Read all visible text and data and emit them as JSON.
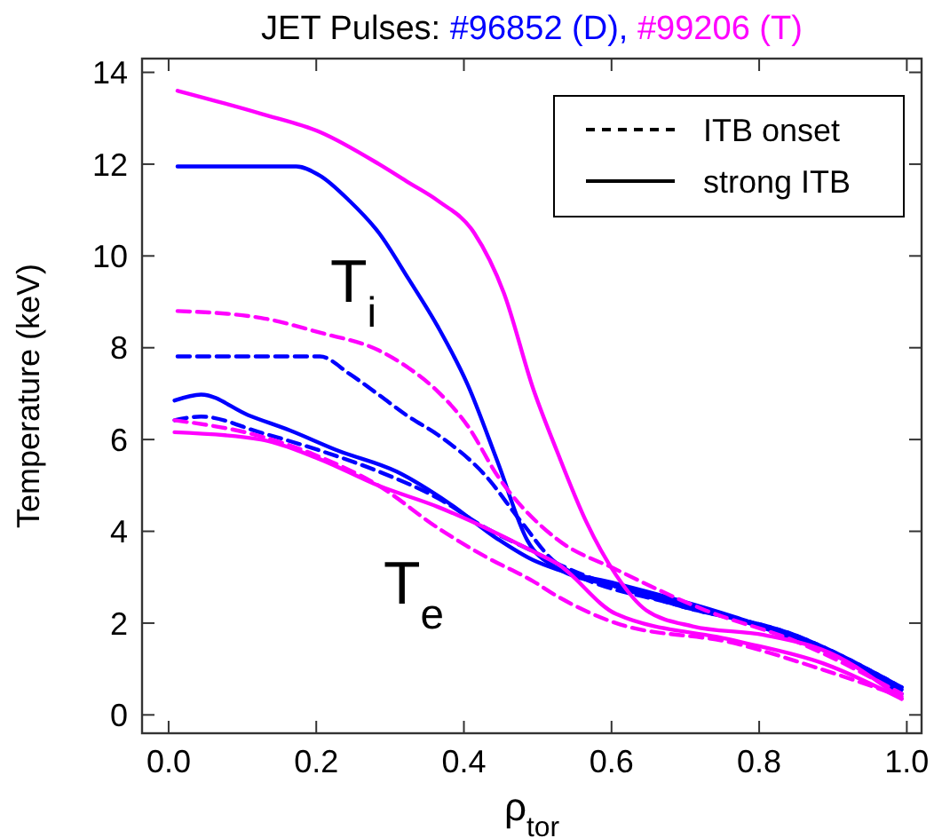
{
  "chart_data": {
    "type": "line",
    "title": "JET Pulses:",
    "xlabel": "ρ$_{tor}$",
    "ylabel": "Temperature (keV)",
    "xlim": [
      -0.036,
      1.02
    ],
    "ylim": [
      -0.4,
      14.3
    ],
    "xticks": [
      {
        "value": 0,
        "label": "0.0"
      },
      {
        "value": 0.2,
        "label": "0.2"
      },
      {
        "value": 0.4,
        "label": "0.4"
      },
      {
        "value": 0.6,
        "label": "0.6"
      },
      {
        "value": 0.8,
        "label": "0.8"
      },
      {
        "value": 1,
        "label": "1.0"
      }
    ],
    "yticks": [
      0,
      2,
      4,
      6,
      8,
      10,
      12,
      14
    ],
    "marker": "none",
    "annotations": [
      "ITB onset",
      "strong ITB",
      "T$_{i}$",
      "T$_{e}$"
    ],
    "series": [
      {
        "name": "#96852 (D),",
        "color": "#0000ff",
        "line_style": "solid",
        "x": [
          0.012,
          0.1,
          0.173,
          0.205,
          0.245,
          0.285,
          0.325,
          0.365,
          0.405,
          0.446,
          0.486,
          0.526,
          0.606,
          0.767,
          0.896,
          0.993
        ],
        "values": [
          11.95,
          11.95,
          11.95,
          11.75,
          11.2,
          10.5,
          9.5,
          8.45,
          7.2,
          5.5,
          3.8,
          3.2,
          2.8,
          2.1,
          1.35,
          0.55
        ]
      },
      {
        "color": "#0000ff",
        "line_style": "dashed",
        "x": [
          0.012,
          0.1,
          0.205,
          0.245,
          0.285,
          0.325,
          0.365,
          0.43,
          0.478,
          0.526,
          0.687,
          0.848,
          0.993
        ],
        "values": [
          7.81,
          7.81,
          7.81,
          7.43,
          6.97,
          6.5,
          6.1,
          5.2,
          4.2,
          3.3,
          2.4,
          1.74,
          0.6
        ]
      },
      {
        "color": "#0000ff",
        "line_style": "solid",
        "x": [
          0.008,
          0.044,
          0.108,
          0.164,
          0.229,
          0.309,
          0.381,
          0.446,
          0.494,
          0.526,
          0.606,
          0.767,
          0.887,
          0.993
        ],
        "values": [
          6.85,
          6.98,
          6.53,
          6.2,
          5.76,
          5.3,
          4.6,
          3.83,
          3.37,
          3.17,
          2.86,
          2.13,
          1.43,
          0.46
        ]
      },
      {
        "color": "#0000ff",
        "line_style": "dashed",
        "x": [
          0.008,
          0.044,
          0.125,
          0.205,
          0.285,
          0.365,
          0.43,
          0.494,
          0.526,
          0.687,
          0.848,
          0.993
        ],
        "values": [
          6.42,
          6.5,
          6.15,
          5.76,
          5.3,
          4.72,
          4.07,
          3.56,
          3.3,
          2.4,
          1.74,
          0.6
        ]
      },
      {
        "name": "#99206 (T)",
        "color": "#ff00ff",
        "line_style": "solid",
        "x": [
          0.012,
          0.125,
          0.205,
          0.285,
          0.325,
          0.365,
          0.414,
          0.454,
          0.494,
          0.526,
          0.566,
          0.606,
          0.647,
          0.71,
          0.807,
          0.896,
          0.993
        ],
        "values": [
          13.6,
          13.1,
          12.7,
          12.0,
          11.6,
          11.2,
          10.5,
          9.2,
          7.1,
          5.75,
          4.2,
          3.05,
          2.28,
          1.93,
          1.74,
          1.35,
          0.35
        ]
      },
      {
        "color": "#ff00ff",
        "line_style": "dashed",
        "x": [
          0.012,
          0.125,
          0.205,
          0.285,
          0.325,
          0.365,
          0.405,
          0.446,
          0.526,
          0.606,
          0.727,
          0.847,
          0.993
        ],
        "values": [
          8.8,
          8.65,
          8.33,
          7.94,
          7.56,
          7.04,
          6.3,
          5.2,
          3.83,
          3.17,
          2.28,
          1.62,
          0.46
        ]
      },
      {
        "color": "#ff00ff",
        "line_style": "solid",
        "x": [
          0.008,
          0.125,
          0.205,
          0.285,
          0.365,
          0.43,
          0.494,
          0.526,
          0.606,
          0.767,
          0.887,
          0.993
        ],
        "values": [
          6.16,
          6.0,
          5.57,
          4.99,
          4.53,
          4.07,
          3.56,
          3.3,
          2.2,
          1.62,
          1.12,
          0.35
        ]
      },
      {
        "color": "#ff00ff",
        "line_style": "dashed",
        "x": [
          0.008,
          0.125,
          0.205,
          0.285,
          0.365,
          0.43,
          0.494,
          0.526,
          0.606,
          0.767,
          0.887,
          0.993
        ],
        "values": [
          6.42,
          6.07,
          5.62,
          4.99,
          4.07,
          3.44,
          2.91,
          2.59,
          2.0,
          1.56,
          0.98,
          0.4
        ]
      }
    ]
  }
}
